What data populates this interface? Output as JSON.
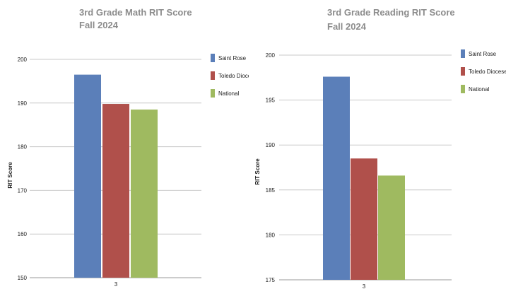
{
  "chart_data": [
    {
      "type": "bar",
      "title": "3rd Grade Math RIT Score",
      "subtitle": "Fall 2024",
      "xlabel": "",
      "ylabel": "RIT Score",
      "categories": [
        "3"
      ],
      "ylim": [
        150,
        200
      ],
      "yticks": [
        150,
        160,
        170,
        180,
        190,
        200
      ],
      "grid": true,
      "legend": "right",
      "series": [
        {
          "name": "Saint Rose",
          "values": [
            196.5
          ],
          "color": "#5b7fb9"
        },
        {
          "name": "Toledo Diocese",
          "values": [
            189.8
          ],
          "color": "#b0504b"
        },
        {
          "name": "National",
          "values": [
            188.5
          ],
          "color": "#9fba60"
        }
      ]
    },
    {
      "type": "bar",
      "title": "3rd Grade Reading RIT Score",
      "subtitle": "Fall 2024",
      "xlabel": "",
      "ylabel": "RIT Score",
      "categories": [
        "3"
      ],
      "ylim": [
        175,
        200
      ],
      "yticks": [
        175,
        180,
        185,
        190,
        195,
        200
      ],
      "grid": true,
      "legend": "right",
      "series": [
        {
          "name": "Saint Rose",
          "values": [
            197.6
          ],
          "color": "#5b7fb9"
        },
        {
          "name": "Toledo Diocese",
          "values": [
            188.5
          ],
          "color": "#b0504b"
        },
        {
          "name": "National",
          "values": [
            186.6
          ],
          "color": "#9fba60"
        }
      ]
    }
  ]
}
